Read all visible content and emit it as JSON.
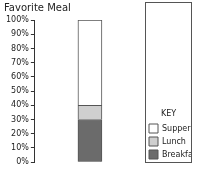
{
  "chart_data": {
    "type": "bar",
    "title": "Favorite Meal",
    "categories": [
      null
    ],
    "series": [
      {
        "name": "Breakfast",
        "color": "#6b6b6b",
        "values": [
          30
        ]
      },
      {
        "name": "Lunch",
        "color": "#cfcfcf",
        "values": [
          10
        ]
      },
      {
        "name": "Supper",
        "color": "#ffffff",
        "values": [
          60
        ]
      }
    ],
    "stacked": true,
    "legend": "lower right",
    "legend_title": "KEY",
    "ylim": [
      0,
      100
    ],
    "yticks": [
      {
        "value": 0,
        "label": "0%"
      },
      {
        "value": 10,
        "label": "10%"
      },
      {
        "value": 20,
        "label": "20%"
      },
      {
        "value": 30,
        "label": "30%"
      },
      {
        "value": 40,
        "label": "40%"
      },
      {
        "value": 50,
        "label": "50%"
      },
      {
        "value": 60,
        "label": "60%"
      },
      {
        "value": 70,
        "label": "70%"
      },
      {
        "value": 80,
        "label": "80%"
      },
      {
        "value": 90,
        "label": "90%"
      },
      {
        "value": 100,
        "label": "100%"
      }
    ],
    "grid": false
  }
}
